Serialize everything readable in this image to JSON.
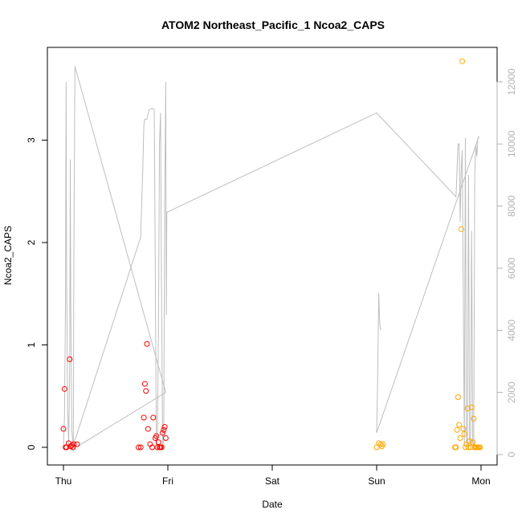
{
  "chart_data": {
    "type": "scatter",
    "title": "ATOM2 Northeast_Pacific_1 Ncoa2_CAPS",
    "xlabel": "Date",
    "ylabel": "Ncoa2_CAPS",
    "x_ticks": [
      "Thu",
      "Fri",
      "Sat",
      "Sun",
      "Mon"
    ],
    "y_ticks": [
      "0",
      "1",
      "2",
      "3"
    ],
    "y_right_ticks": [
      "0",
      "2000",
      "4000",
      "6000",
      "8000",
      "10000",
      "12000"
    ],
    "ylim": [
      0,
      3.9
    ],
    "y_right_lim": [
      0,
      12300
    ],
    "xlim": [
      -0.2,
      4.2
    ],
    "colors": {
      "red_points": "#ff0000",
      "orange_points": "#ffa500",
      "grey_line": "#bebebe",
      "right_axis": "#b3b3b3"
    },
    "series": [
      {
        "values": [
          [
            0.0,
            0.18
          ],
          [
            0.01,
            0.57
          ],
          [
            0.02,
            0.0
          ],
          [
            0.03,
            0.0
          ],
          [
            0.05,
            0.04
          ],
          [
            0.06,
            0.86
          ],
          [
            0.07,
            0.01
          ],
          [
            0.08,
            0.02
          ],
          [
            0.09,
            0.0
          ],
          [
            0.1,
            0.03
          ],
          [
            0.13,
            0.03
          ],
          [
            0.72,
            0.0
          ],
          [
            0.74,
            0.0
          ],
          [
            0.77,
            0.29
          ],
          [
            0.78,
            0.62
          ],
          [
            0.79,
            0.55
          ],
          [
            0.8,
            1.01
          ],
          [
            0.81,
            0.18
          ],
          [
            0.83,
            0.03
          ],
          [
            0.85,
            0.0
          ],
          [
            0.86,
            0.29
          ],
          [
            0.88,
            0.09
          ],
          [
            0.89,
            0.11
          ],
          [
            0.9,
            0.0
          ],
          [
            0.91,
            0.05
          ],
          [
            0.92,
            0.0
          ],
          [
            0.93,
            0.0
          ],
          [
            0.94,
            0.0
          ],
          [
            0.95,
            0.14
          ],
          [
            0.96,
            0.17
          ],
          [
            0.97,
            0.2
          ],
          [
            0.98,
            0.09
          ]
        ]
      },
      {
        "values": [
          [
            3.0,
            0.0
          ],
          [
            3.02,
            0.04
          ],
          [
            3.04,
            0.03
          ],
          [
            3.05,
            0.01
          ],
          [
            3.06,
            0.03
          ],
          [
            3.75,
            0.0
          ],
          [
            3.76,
            0.0
          ],
          [
            3.77,
            0.17
          ],
          [
            3.78,
            0.49
          ],
          [
            3.79,
            0.22
          ],
          [
            3.8,
            0.09
          ],
          [
            3.81,
            2.13
          ],
          [
            3.82,
            3.77
          ],
          [
            3.83,
            0.18
          ],
          [
            3.84,
            0.13
          ],
          [
            3.85,
            0.0
          ],
          [
            3.86,
            0.03
          ],
          [
            3.87,
            0.38
          ],
          [
            3.88,
            0.0
          ],
          [
            3.89,
            0.06
          ],
          [
            3.9,
            0.0
          ],
          [
            3.91,
            0.39
          ],
          [
            3.92,
            0.05
          ],
          [
            3.93,
            0.28
          ],
          [
            3.94,
            0.0
          ],
          [
            3.95,
            0.0
          ],
          [
            3.96,
            0.0
          ],
          [
            3.97,
            0.0
          ],
          [
            3.98,
            0.0
          ],
          [
            3.99,
            0.0
          ]
        ]
      },
      {
        "axis": "right",
        "values": [
          [
            0.0,
            250
          ],
          [
            0.01,
            1200
          ],
          [
            0.02,
            5000
          ],
          [
            0.025,
            12000
          ],
          [
            0.03,
            6000
          ],
          [
            0.04,
            1500
          ],
          [
            0.05,
            300
          ],
          [
            0.06,
            3000
          ],
          [
            0.065,
            9500
          ],
          [
            0.07,
            5000
          ],
          [
            0.08,
            800
          ],
          [
            0.09,
            350
          ],
          [
            0.095,
            400
          ],
          [
            0.1,
            6500
          ],
          [
            0.11,
            12500
          ],
          [
            0.98,
            2000
          ],
          [
            0.08,
            150
          ],
          [
            0.74,
            7000
          ],
          [
            0.76,
            9200
          ],
          [
            0.77,
            10600
          ],
          [
            0.78,
            10800
          ],
          [
            0.8,
            10800
          ],
          [
            0.82,
            11100
          ],
          [
            0.85,
            11150
          ],
          [
            0.87,
            11100
          ],
          [
            0.89,
            300
          ],
          [
            0.9,
            500
          ],
          [
            0.91,
            4000
          ],
          [
            0.92,
            10000
          ],
          [
            0.93,
            11000
          ],
          [
            0.94,
            5000
          ],
          [
            0.95,
            200
          ],
          [
            0.96,
            300
          ],
          [
            0.97,
            8000
          ],
          [
            0.98,
            12000
          ],
          [
            0.985,
            4500
          ],
          [
            0.99,
            7800
          ],
          [
            3.0,
            11000
          ],
          [
            3.76,
            8300
          ],
          [
            3.78,
            10000
          ],
          [
            3.79,
            10000
          ],
          [
            3.8,
            7500
          ],
          [
            3.81,
            9200
          ],
          [
            3.82,
            9800
          ],
          [
            3.83,
            5000
          ],
          [
            3.84,
            300
          ],
          [
            3.85,
            10200
          ],
          [
            3.86,
            400
          ],
          [
            3.87,
            300
          ],
          [
            3.88,
            9000
          ],
          [
            3.89,
            400
          ],
          [
            3.9,
            350
          ],
          [
            3.91,
            7200
          ],
          [
            3.92,
            400
          ],
          [
            3.93,
            300
          ],
          [
            3.94,
            9000
          ],
          [
            3.95,
            10000
          ],
          [
            3.96,
            9600
          ],
          [
            3.97,
            10200
          ],
          [
            3.98,
            10250
          ],
          [
            3.0,
            700
          ],
          [
            3.01,
            2500
          ],
          [
            3.02,
            5200
          ],
          [
            3.03,
            4200
          ],
          [
            3.04,
            4000
          ]
        ]
      }
    ]
  }
}
